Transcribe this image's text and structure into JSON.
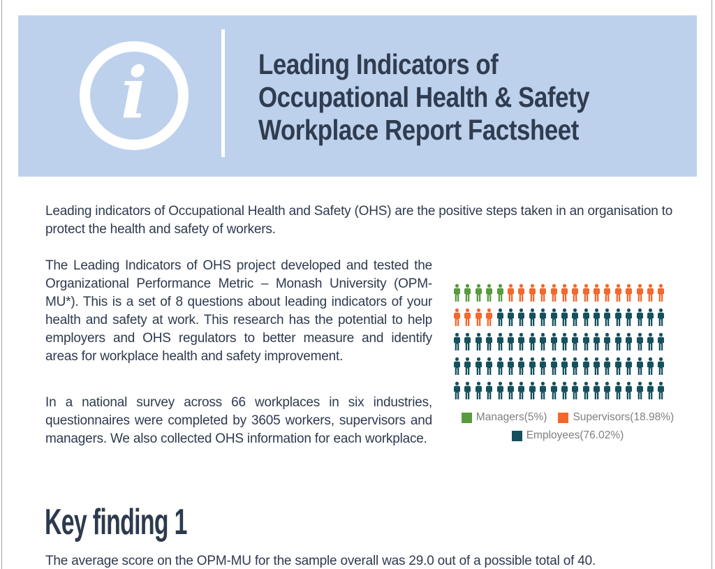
{
  "header": {
    "icon_glyph": "i",
    "title_lines": [
      "Leading Indicators of",
      "Occupational Health & Safety",
      "Workplace Report Factsheet"
    ],
    "background_color": "#bdd1ec",
    "text_color": "#303c50"
  },
  "intro_paragraph": "Leading indicators of Occupational Health and Safety (OHS) are the positive steps taken in an organisation to protect the health and safety of workers.",
  "body_paragraphs": {
    "p1": "The Leading Indicators of OHS project developed and tested the Organizational Performance Metric – Monash University (OPM-MU*). This is a set of 8 questions about leading indicators of your health and safety at work. This research has the potential to help employers and OHS regulators to better measure and identify areas for workplace health and safety improvement.",
    "p2": "In a national survey across 66 workplaces in six industries, questionnaires were completed by 3605 workers, supervisors and managers. We also collected OHS information for each workplace."
  },
  "chart_data": {
    "type": "pictogram",
    "rows": 5,
    "columns": 20,
    "total_icons": 100,
    "legend_position": "bottom",
    "series": [
      {
        "name": "Managers",
        "label": "Managers(5%)",
        "percent": 5,
        "icons": 5,
        "color": "#579b3e"
      },
      {
        "name": "Supervisors",
        "label": "Supervisors(18.98%)",
        "percent": 18.98,
        "icons": 19,
        "color": "#f2682d"
      },
      {
        "name": "Employees",
        "label": "Employees(76.02%)",
        "percent": 76.02,
        "icons": 76,
        "color": "#15505e"
      }
    ]
  },
  "key_finding": {
    "heading": "Key finding 1",
    "text": "The average score on the OPM-MU for the sample overall was 29.0 out of a possible total of 40."
  }
}
